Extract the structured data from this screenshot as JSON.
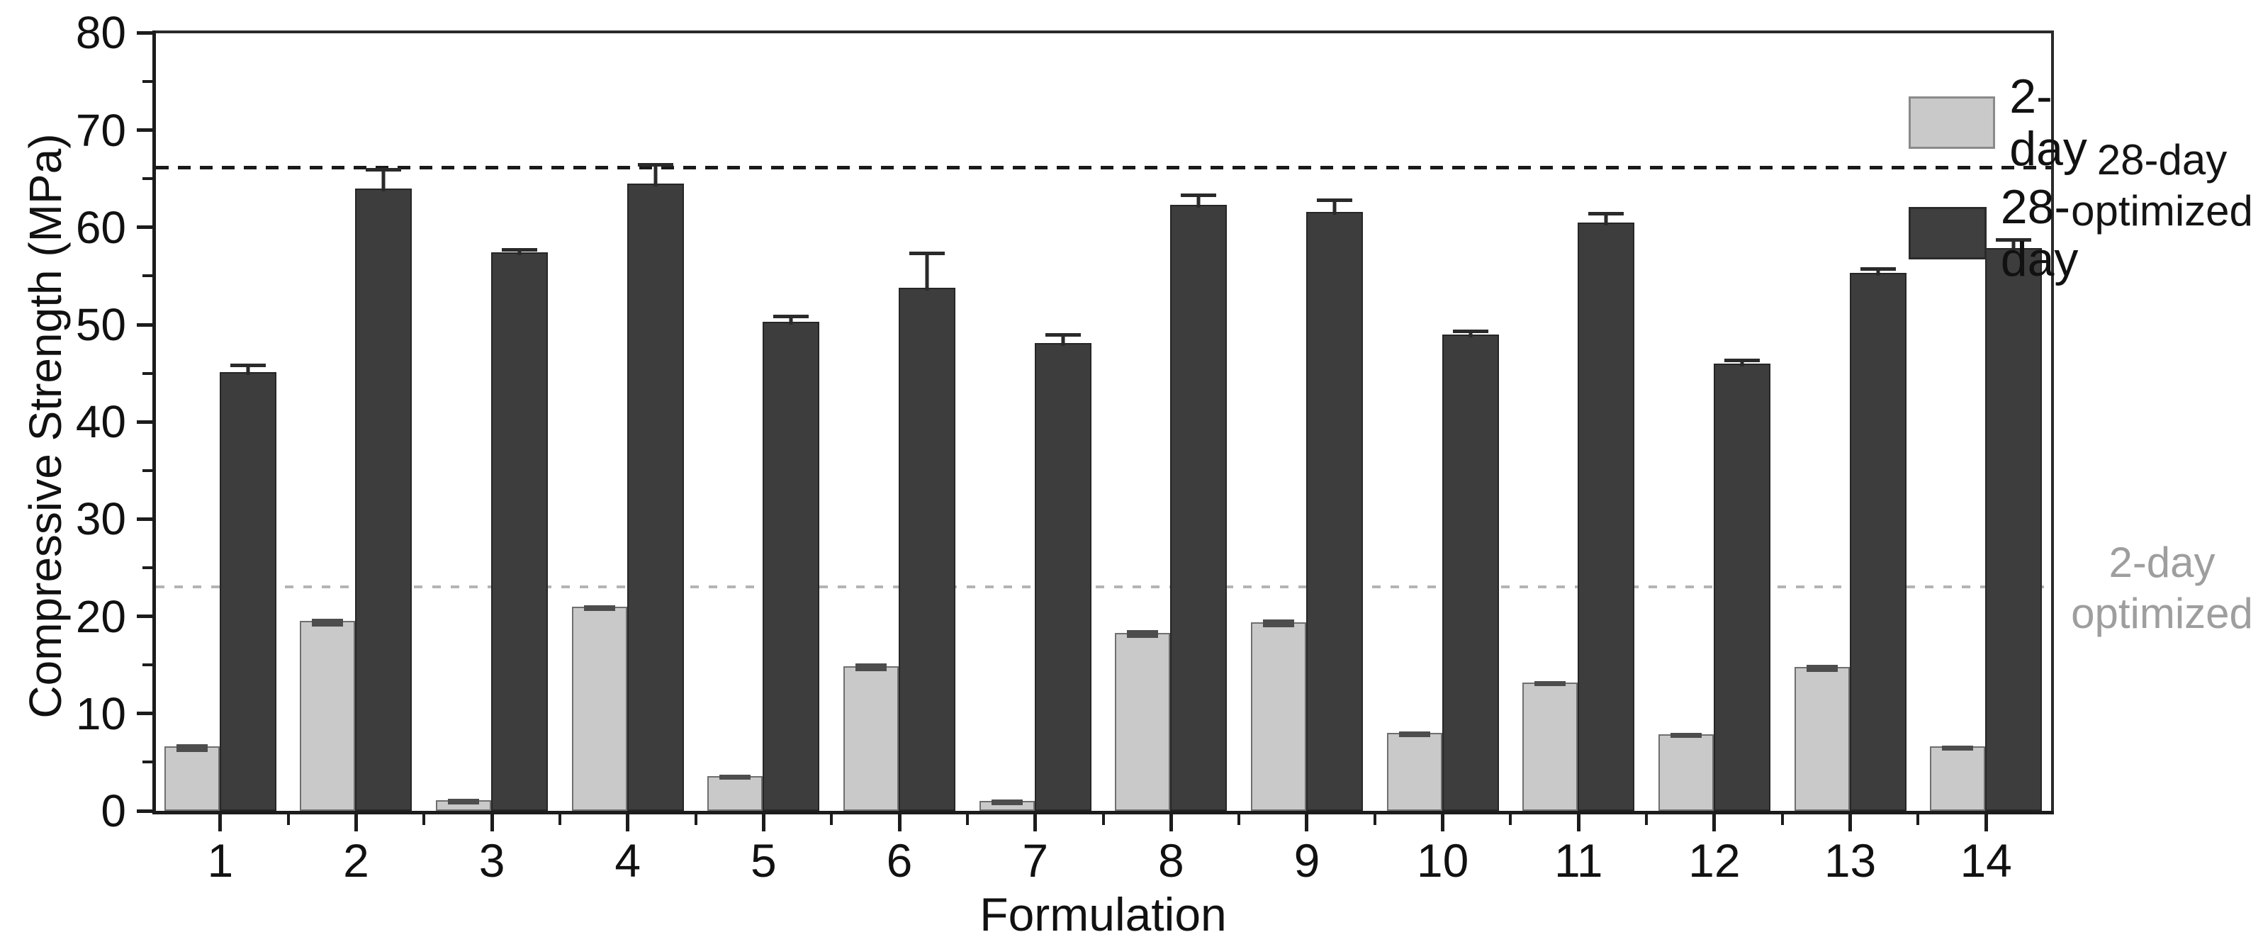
{
  "chart_data": {
    "type": "bar",
    "title": "",
    "xlabel": "Formulation",
    "ylabel": "Compressive Strength (MPa)",
    "ylim": [
      0,
      80
    ],
    "y_major_ticks": [
      0,
      10,
      20,
      30,
      40,
      50,
      60,
      70,
      80
    ],
    "y_minor_step": 5,
    "grid": false,
    "legend_position": "top-right-inside",
    "categories": [
      "1",
      "2",
      "3",
      "4",
      "5",
      "6",
      "7",
      "8",
      "9",
      "10",
      "11",
      "12",
      "13",
      "14"
    ],
    "series": [
      {
        "name": "2-day",
        "color": "#c9c9c9",
        "border_color": "#6f6f6f",
        "values": [
          6.6,
          19.5,
          1.1,
          21.0,
          3.6,
          14.9,
          1.0,
          18.3,
          19.4,
          8.0,
          13.2,
          7.9,
          14.8,
          6.6
        ],
        "errors": [
          0.4,
          0.4,
          0.15,
          0.3,
          0.2,
          0.4,
          0.15,
          0.4,
          0.4,
          0.3,
          0.25,
          0.25,
          0.35,
          0.25
        ]
      },
      {
        "name": "28-day",
        "color": "#3d3d3d",
        "border_color": "#262626",
        "values": [
          45.1,
          64.0,
          57.4,
          64.5,
          50.3,
          53.8,
          48.1,
          62.3,
          61.6,
          49.0,
          60.5,
          46.0,
          55.3,
          57.9
        ],
        "errors": [
          1.2,
          2.4,
          0.8,
          2.4,
          1.0,
          4.0,
          1.3,
          1.5,
          1.7,
          0.8,
          1.4,
          0.8,
          0.9,
          1.3
        ]
      }
    ],
    "reference_lines": [
      {
        "label": "28-day optimized",
        "value": 66.2,
        "color": "#1a1a1a",
        "style": "dashed"
      },
      {
        "label": "2-day optimized",
        "value": 23.0,
        "color": "#b4b4b4",
        "style": "dashed"
      }
    ]
  },
  "legend": {
    "items": [
      {
        "label": "2-day"
      },
      {
        "label": "28-day"
      }
    ]
  },
  "annotations": {
    "optimized_28": {
      "line1": "28-day",
      "line2": "optimized",
      "color": "#141414"
    },
    "optimized_2": {
      "line1": "2-day",
      "line2": "optimized",
      "color": "#9e9e9e"
    }
  }
}
